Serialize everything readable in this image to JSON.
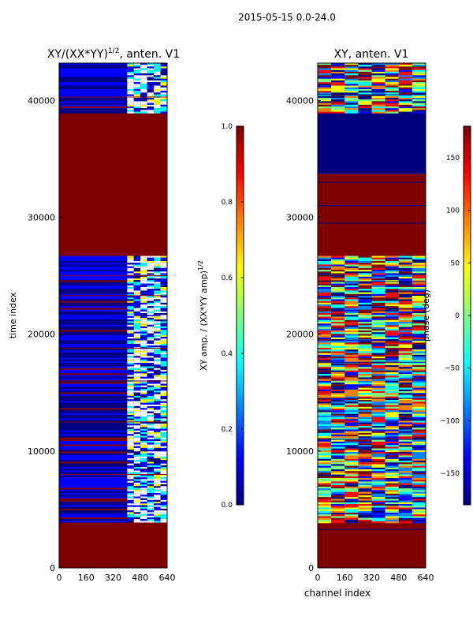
{
  "suptitle": "2015-05-15 0.0-24.0",
  "colors": {
    "jet": [
      "#00007f",
      "#0000ff",
      "#007fff",
      "#00ffff",
      "#7fff7f",
      "#ffff00",
      "#ff7f00",
      "#ff0000",
      "#7f0000"
    ],
    "dark_red": "#7f0000",
    "dark_blue": "#00007f"
  },
  "chart_data": [
    {
      "type": "heatmap",
      "title": "XY/(XX*YY)",
      "title_exponent": "1/2",
      "title_suffix": ", anten. V1",
      "xlabel": "",
      "ylabel": "time index",
      "x_range": [
        0,
        640
      ],
      "y_range": [
        0,
        43200
      ],
      "xticks": [
        "0",
        "160",
        "320",
        "480",
        "640"
      ],
      "yticks": [
        "0",
        "10000",
        "20000",
        "30000",
        "40000"
      ],
      "ytick_values": [
        0,
        10000,
        20000,
        30000,
        40000
      ],
      "bands": [
        {
          "from": 0,
          "to": 2700,
          "fill": "flag"
        },
        {
          "from": 2700,
          "to": 3900,
          "fill": "flag"
        },
        {
          "from": 3900,
          "to": 21700,
          "fill": "data"
        },
        {
          "from": 21700,
          "to": 26700,
          "fill": "data"
        },
        {
          "from": 26700,
          "to": 39000,
          "fill": "flag"
        },
        {
          "from": 39000,
          "to": 43200,
          "fill": "data"
        }
      ],
      "colorbar": {
        "label": "XY amp. / (XX*YY amp)",
        "label_exponent": "1/2",
        "range": [
          0.0,
          1.0
        ],
        "ticks": [
          "0.0",
          "0.2",
          "0.4",
          "0.6",
          "0.8",
          "1.0"
        ],
        "tick_values": [
          0.0,
          0.2,
          0.4,
          0.6,
          0.8,
          1.0
        ]
      }
    },
    {
      "type": "heatmap",
      "title": "XY, anten. V1",
      "xlabel": "channel index",
      "ylabel": "",
      "x_range": [
        0,
        640
      ],
      "y_range": [
        0,
        43200
      ],
      "xticks": [
        "0",
        "160",
        "320",
        "480",
        "640"
      ],
      "yticks": [
        "0",
        "10000",
        "20000",
        "30000",
        "40000"
      ],
      "ytick_values": [
        0,
        10000,
        20000,
        30000,
        40000
      ],
      "bands": [
        {
          "from": 0,
          "to": 3900,
          "fill": "flag"
        },
        {
          "from": 3900,
          "to": 16600,
          "fill": "phase"
        },
        {
          "from": 16600,
          "to": 26700,
          "fill": "phase"
        },
        {
          "from": 26700,
          "to": 33700,
          "fill": "flag"
        },
        {
          "from": 33700,
          "to": 39000,
          "fill": "low"
        },
        {
          "from": 39000,
          "to": 43200,
          "fill": "phase"
        }
      ],
      "colorbar": {
        "label": "phase (deg)",
        "range": [
          -180,
          180
        ],
        "ticks": [
          "−150",
          "−100",
          "−50",
          "0",
          "50",
          "100",
          "150"
        ],
        "tick_values": [
          -150,
          -100,
          -50,
          0,
          50,
          100,
          150
        ]
      }
    }
  ]
}
